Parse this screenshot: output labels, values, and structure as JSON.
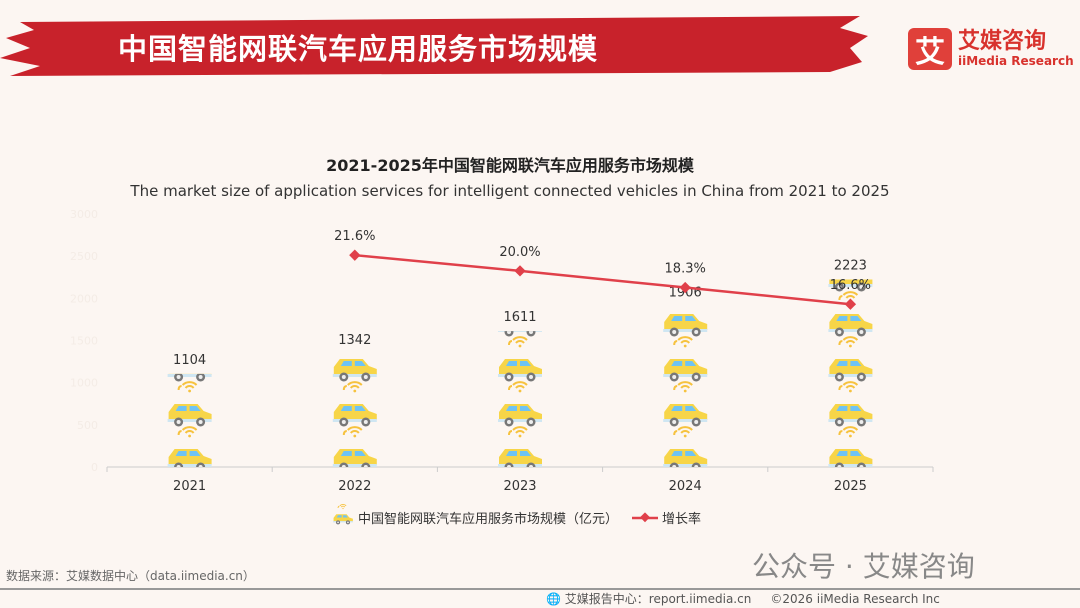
{
  "header": {
    "title": "中国智能网联汽车应用服务市场规模",
    "logo_mark": "艾",
    "logo_cn": "艾媒咨询",
    "logo_en": "iiMedia Research"
  },
  "chart_data": {
    "type": "bar",
    "title": "2021-2025年中国智能网联汽车应用服务市场规模",
    "subtitle": "The market size of application services for intelligent connected vehicles in China from 2021 to 2025",
    "categories": [
      "2021",
      "2022",
      "2023",
      "2024",
      "2025"
    ],
    "series": [
      {
        "name": "中国智能网联汽车应用服务市场规模（亿元）",
        "type": "pictorial-bar",
        "values": [
          1104,
          1342,
          1611,
          1906,
          2223
        ]
      },
      {
        "name": "增长率",
        "type": "line",
        "values": [
          null,
          21.6,
          20.0,
          18.3,
          16.6
        ],
        "labels": [
          "",
          "21.6%",
          "20.0%",
          "18.3%",
          "16.6%"
        ]
      }
    ],
    "yticks": [
      "0",
      "500",
      "1000",
      "1500",
      "2000",
      "2500",
      "3000"
    ],
    "ylim": [
      0,
      3000
    ],
    "y2lim": [
      0,
      25.8
    ],
    "colors": {
      "line": "#e0404a",
      "car": "#f7d548",
      "window": "#6ec3f4"
    },
    "legend_position": "bottom"
  },
  "footer": {
    "source": "数据来源：艾媒数据中心（data.iimedia.cn）",
    "watermark": "公众号 · 艾媒咨询",
    "report": "艾媒报告中心：report.iimedia.cn",
    "copyright": "©2026  iiMedia Research  Inc"
  }
}
